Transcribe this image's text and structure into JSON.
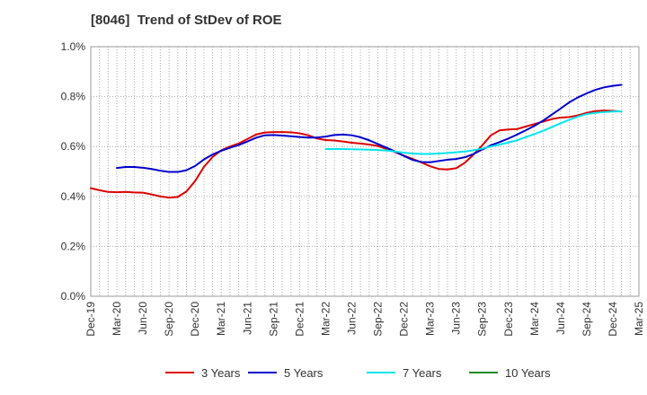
{
  "chart_data": {
    "type": "line",
    "title": "[8046]  Trend of StDev of ROE",
    "xlabel": "",
    "ylabel": "",
    "ylim": [
      0,
      1.0
    ],
    "y_ticks": [
      "0.0%",
      "0.2%",
      "0.4%",
      "0.6%",
      "0.8%",
      "1.0%"
    ],
    "x_ticks": [
      "Dec-19",
      "Mar-20",
      "Jun-20",
      "Sep-20",
      "Dec-20",
      "Mar-21",
      "Jun-21",
      "Sep-21",
      "Dec-21",
      "Mar-22",
      "Jun-22",
      "Sep-22",
      "Dec-22",
      "Mar-23",
      "Jun-23",
      "Sep-23",
      "Dec-23",
      "Mar-24",
      "Jun-24",
      "Sep-24",
      "Dec-24",
      "Mar-25"
    ],
    "grid": true,
    "legend_position": "bottom",
    "series": [
      {
        "name": "3 Years",
        "color": "#dd0000",
        "points": [
          [
            "Dec-19",
            0.433
          ],
          [
            "Jan-20",
            0.425
          ],
          [
            "Feb-20",
            0.418
          ],
          [
            "Mar-20",
            0.417
          ],
          [
            "Apr-20",
            0.418
          ],
          [
            "May-20",
            0.416
          ],
          [
            "Jun-20",
            0.415
          ],
          [
            "Jul-20",
            0.408
          ],
          [
            "Aug-20",
            0.4
          ],
          [
            "Sep-20",
            0.395
          ],
          [
            "Oct-20",
            0.398
          ],
          [
            "Nov-20",
            0.42
          ],
          [
            "Dec-20",
            0.462
          ],
          [
            "Jan-21",
            0.518
          ],
          [
            "Feb-21",
            0.558
          ],
          [
            "Mar-21",
            0.585
          ],
          [
            "Apr-21",
            0.6
          ],
          [
            "May-21",
            0.612
          ],
          [
            "Jun-21",
            0.63
          ],
          [
            "Jul-21",
            0.648
          ],
          [
            "Aug-21",
            0.656
          ],
          [
            "Sep-21",
            0.658
          ],
          [
            "Oct-21",
            0.658
          ],
          [
            "Nov-21",
            0.657
          ],
          [
            "Dec-21",
            0.653
          ],
          [
            "Jan-22",
            0.645
          ],
          [
            "Feb-22",
            0.632
          ],
          [
            "Mar-22",
            0.626
          ],
          [
            "Apr-22",
            0.624
          ],
          [
            "May-22",
            0.62
          ],
          [
            "Jun-22",
            0.615
          ],
          [
            "Jul-22",
            0.612
          ],
          [
            "Aug-22",
            0.608
          ],
          [
            "Sep-22",
            0.602
          ],
          [
            "Oct-22",
            0.59
          ],
          [
            "Nov-22",
            0.577
          ],
          [
            "Dec-22",
            0.563
          ],
          [
            "Jan-23",
            0.55
          ],
          [
            "Feb-23",
            0.536
          ],
          [
            "Mar-23",
            0.521
          ],
          [
            "Apr-23",
            0.51
          ],
          [
            "May-23",
            0.508
          ],
          [
            "Jun-23",
            0.513
          ],
          [
            "Jul-23",
            0.535
          ],
          [
            "Aug-23",
            0.568
          ],
          [
            "Sep-23",
            0.605
          ],
          [
            "Oct-23",
            0.645
          ],
          [
            "Nov-23",
            0.665
          ],
          [
            "Dec-23",
            0.668
          ],
          [
            "Jan-24",
            0.67
          ],
          [
            "Feb-24",
            0.68
          ],
          [
            "Mar-24",
            0.69
          ],
          [
            "Apr-24",
            0.7
          ],
          [
            "May-24",
            0.71
          ],
          [
            "Jun-24",
            0.716
          ],
          [
            "Jul-24",
            0.718
          ],
          [
            "Aug-24",
            0.725
          ],
          [
            "Sep-24",
            0.735
          ],
          [
            "Oct-24",
            0.742
          ],
          [
            "Nov-24",
            0.744
          ],
          [
            "Dec-24",
            0.743
          ],
          [
            "Jan-25",
            0.74
          ]
        ]
      },
      {
        "name": "5 Years",
        "color": "#0000cc",
        "points": [
          [
            "Mar-20",
            0.514
          ],
          [
            "Apr-20",
            0.518
          ],
          [
            "May-20",
            0.518
          ],
          [
            "Jun-20",
            0.515
          ],
          [
            "Jul-20",
            0.51
          ],
          [
            "Aug-20",
            0.503
          ],
          [
            "Sep-20",
            0.498
          ],
          [
            "Oct-20",
            0.498
          ],
          [
            "Nov-20",
            0.505
          ],
          [
            "Dec-20",
            0.522
          ],
          [
            "Jan-21",
            0.548
          ],
          [
            "Feb-21",
            0.568
          ],
          [
            "Mar-21",
            0.583
          ],
          [
            "Apr-21",
            0.595
          ],
          [
            "May-21",
            0.606
          ],
          [
            "Jun-21",
            0.62
          ],
          [
            "Jul-21",
            0.635
          ],
          [
            "Aug-21",
            0.645
          ],
          [
            "Sep-21",
            0.646
          ],
          [
            "Oct-21",
            0.644
          ],
          [
            "Nov-21",
            0.641
          ],
          [
            "Dec-21",
            0.638
          ],
          [
            "Jan-22",
            0.636
          ],
          [
            "Feb-22",
            0.636
          ],
          [
            "Mar-22",
            0.64
          ],
          [
            "Apr-22",
            0.646
          ],
          [
            "May-22",
            0.648
          ],
          [
            "Jun-22",
            0.645
          ],
          [
            "Jul-22",
            0.637
          ],
          [
            "Aug-22",
            0.625
          ],
          [
            "Sep-22",
            0.61
          ],
          [
            "Oct-22",
            0.595
          ],
          [
            "Nov-22",
            0.58
          ],
          [
            "Dec-22",
            0.562
          ],
          [
            "Jan-23",
            0.546
          ],
          [
            "Feb-23",
            0.538
          ],
          [
            "Mar-23",
            0.537
          ],
          [
            "Apr-23",
            0.542
          ],
          [
            "May-23",
            0.547
          ],
          [
            "Jun-23",
            0.55
          ],
          [
            "Jul-23",
            0.557
          ],
          [
            "Aug-23",
            0.57
          ],
          [
            "Sep-23",
            0.588
          ],
          [
            "Oct-23",
            0.605
          ],
          [
            "Nov-23",
            0.618
          ],
          [
            "Dec-23",
            0.632
          ],
          [
            "Jan-24",
            0.648
          ],
          [
            "Feb-24",
            0.665
          ],
          [
            "Mar-24",
            0.683
          ],
          [
            "Apr-24",
            0.704
          ],
          [
            "May-24",
            0.728
          ],
          [
            "Jun-24",
            0.752
          ],
          [
            "Jul-24",
            0.777
          ],
          [
            "Aug-24",
            0.797
          ],
          [
            "Sep-24",
            0.813
          ],
          [
            "Oct-24",
            0.827
          ],
          [
            "Nov-24",
            0.837
          ],
          [
            "Dec-24",
            0.843
          ],
          [
            "Jan-25",
            0.847
          ]
        ]
      },
      {
        "name": "7 Years",
        "color": "#00e5ee",
        "points": [
          [
            "Mar-22",
            0.59
          ],
          [
            "Apr-22",
            0.59
          ],
          [
            "May-22",
            0.59
          ],
          [
            "Jun-22",
            0.589
          ],
          [
            "Jul-22",
            0.588
          ],
          [
            "Aug-22",
            0.587
          ],
          [
            "Sep-22",
            0.586
          ],
          [
            "Oct-22",
            0.584
          ],
          [
            "Nov-22",
            0.58
          ],
          [
            "Dec-22",
            0.575
          ],
          [
            "Jan-23",
            0.572
          ],
          [
            "Feb-23",
            0.57
          ],
          [
            "Mar-23",
            0.57
          ],
          [
            "Apr-23",
            0.572
          ],
          [
            "May-23",
            0.574
          ],
          [
            "Jun-23",
            0.577
          ],
          [
            "Jul-23",
            0.58
          ],
          [
            "Aug-23",
            0.585
          ],
          [
            "Sep-23",
            0.592
          ],
          [
            "Oct-23",
            0.6
          ],
          [
            "Nov-23",
            0.608
          ],
          [
            "Dec-23",
            0.616
          ],
          [
            "Jan-24",
            0.625
          ],
          [
            "Feb-24",
            0.638
          ],
          [
            "Mar-24",
            0.65
          ],
          [
            "Apr-24",
            0.663
          ],
          [
            "May-24",
            0.678
          ],
          [
            "Jun-24",
            0.693
          ],
          [
            "Jul-24",
            0.707
          ],
          [
            "Aug-24",
            0.72
          ],
          [
            "Sep-24",
            0.73
          ],
          [
            "Oct-24",
            0.735
          ],
          [
            "Nov-24",
            0.738
          ],
          [
            "Dec-24",
            0.74
          ],
          [
            "Jan-25",
            0.741
          ]
        ]
      },
      {
        "name": "10 Years",
        "color": "#228b22",
        "points": []
      }
    ]
  }
}
